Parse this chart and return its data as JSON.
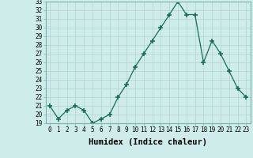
{
  "x": [
    0,
    1,
    2,
    3,
    4,
    5,
    6,
    7,
    8,
    9,
    10,
    11,
    12,
    13,
    14,
    15,
    16,
    17,
    18,
    19,
    20,
    21,
    22,
    23
  ],
  "y": [
    21.0,
    19.5,
    20.5,
    21.0,
    20.5,
    19.0,
    19.5,
    20.0,
    22.0,
    23.5,
    25.5,
    27.0,
    28.5,
    30.0,
    31.5,
    33.0,
    31.5,
    31.5,
    26.0,
    28.5,
    27.0,
    25.0,
    23.0,
    22.0
  ],
  "line_color": "#1a6b5a",
  "marker": "+",
  "marker_size": 5,
  "marker_lw": 1.2,
  "bg_color": "#ceecea",
  "grid_color": "#b0d4d0",
  "xlabel": "Humidex (Indice chaleur)",
  "ylim": [
    19,
    33
  ],
  "xlim": [
    -0.5,
    23.5
  ],
  "yticks": [
    19,
    20,
    21,
    22,
    23,
    24,
    25,
    26,
    27,
    28,
    29,
    30,
    31,
    32,
    33
  ],
  "xticks": [
    0,
    1,
    2,
    3,
    4,
    5,
    6,
    7,
    8,
    9,
    10,
    11,
    12,
    13,
    14,
    15,
    16,
    17,
    18,
    19,
    20,
    21,
    22,
    23
  ],
  "tick_fontsize": 5.5,
  "xlabel_fontsize": 7.5,
  "xlabel_fontweight": "bold",
  "linewidth": 0.9
}
